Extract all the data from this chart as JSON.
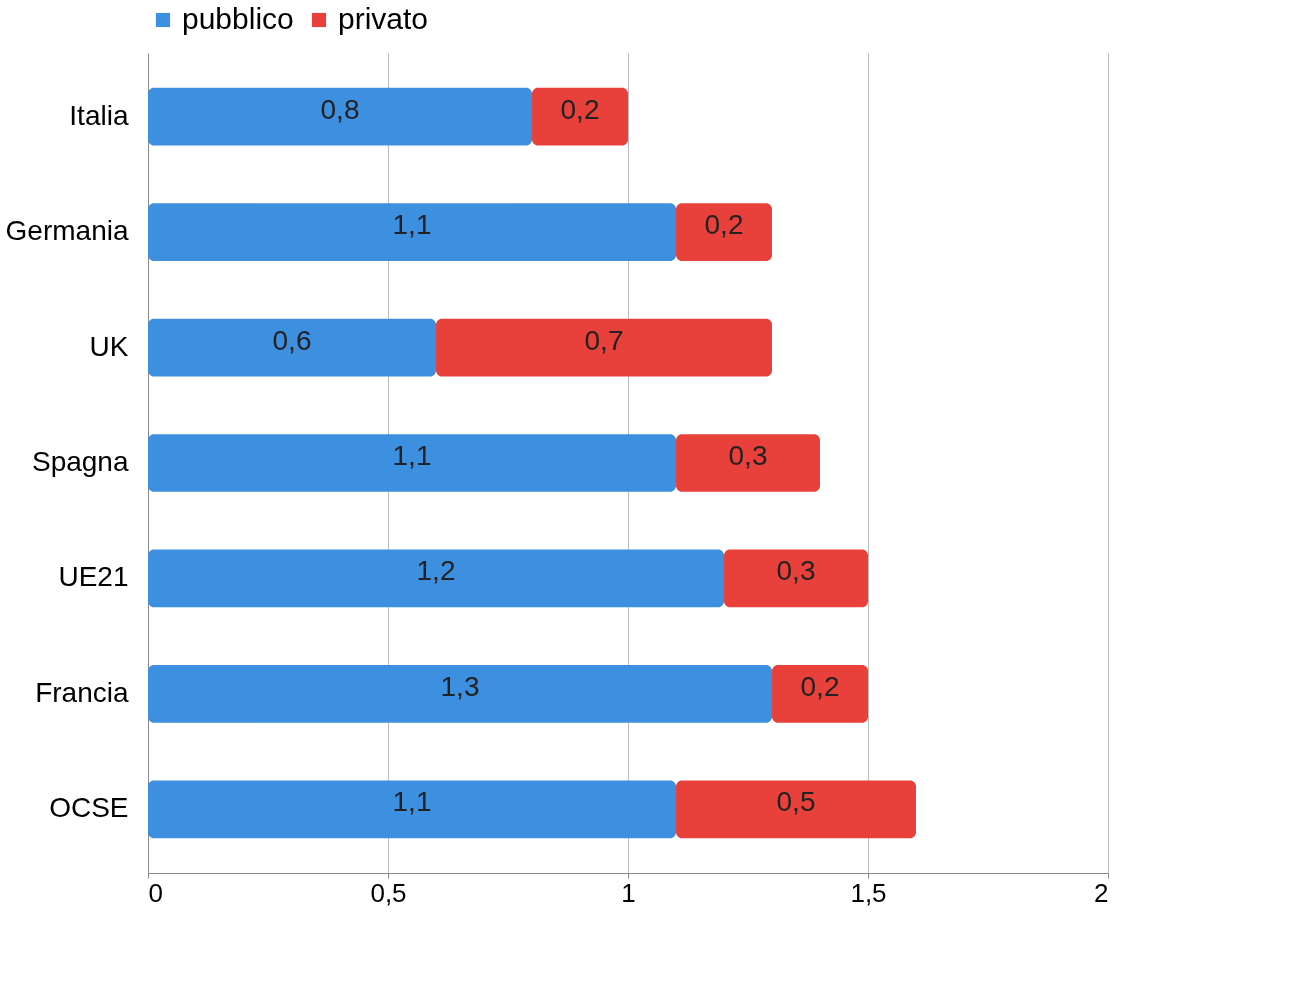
{
  "chart_data": {
    "type": "bar",
    "orientation": "horizontal",
    "stacked": true,
    "categories": [
      "Italia",
      "Germania",
      "UK",
      "Spagna",
      "UE21",
      "Francia",
      "OCSE"
    ],
    "series": [
      {
        "name": "pubblico",
        "color": "#3d8fe0",
        "values": [
          0.8,
          1.1,
          0.6,
          1.1,
          1.2,
          1.3,
          1.1
        ],
        "value_labels": [
          "0,8",
          "1,1",
          "0,6",
          "1,1",
          "1,2",
          "1,3",
          "1,1"
        ]
      },
      {
        "name": "privato",
        "color": "#e8403a",
        "values": [
          0.2,
          0.2,
          0.7,
          0.3,
          0.3,
          0.2,
          0.5
        ],
        "value_labels": [
          "0,2",
          "0,2",
          "0,7",
          "0,3",
          "0,3",
          "0,2",
          "0,5"
        ]
      }
    ],
    "xlim": [
      0,
      2
    ],
    "xticks": [
      0,
      {
        "value": 0.5,
        "label": "0,5"
      },
      1,
      {
        "value": 1.5,
        "label": "1,5"
      },
      2
    ],
    "grid": "x",
    "legend": "top"
  }
}
